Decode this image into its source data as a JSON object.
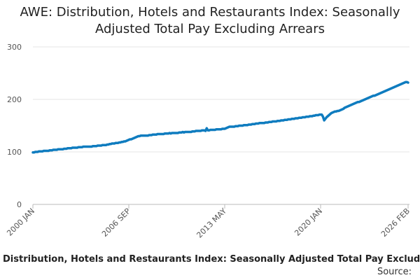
{
  "chart_data": {
    "type": "line",
    "title": "AWE: Distribution, Hotels and Restaurants Index: Seasonally Adjusted Total Pay Excluding Arrears",
    "caption": "Distribution, Hotels and Restaurants Index: Seasonally Adjusted Total Pay Excluding",
    "source": "Source:",
    "color": "#0f7cbf",
    "grid": true,
    "ylim": [
      0,
      300
    ],
    "yticks": [
      0,
      100,
      200,
      300
    ],
    "categories": [
      "2000 JAN",
      null,
      null,
      null,
      null,
      null,
      null,
      null,
      null,
      null,
      null,
      null,
      null,
      null,
      null,
      null,
      null,
      null,
      null,
      null,
      null,
      null,
      null,
      null,
      null,
      null,
      null,
      null,
      null,
      null,
      null,
      null,
      null,
      null,
      null,
      null,
      null,
      null,
      null,
      null,
      null,
      null,
      null,
      null,
      null,
      null,
      null,
      null,
      null,
      null,
      null,
      null,
      null,
      null,
      null,
      null,
      null,
      null,
      null,
      null,
      null,
      null,
      null,
      null,
      null,
      null,
      null,
      null,
      null,
      null,
      null,
      null,
      null,
      null,
      null,
      null,
      null,
      null,
      null,
      null,
      "2006 SEP",
      null,
      null,
      null,
      null,
      null,
      null,
      null,
      null,
      null,
      null,
      null,
      null,
      null,
      null,
      null,
      null,
      null,
      null,
      null,
      null,
      null,
      null,
      null,
      null,
      null,
      null,
      null,
      null,
      null,
      null,
      null,
      null,
      null,
      null,
      null,
      null,
      null,
      null,
      null,
      null,
      null,
      null,
      null,
      null,
      null,
      null,
      null,
      null,
      null,
      null,
      null,
      null,
      null,
      null,
      null,
      null,
      null,
      null,
      null,
      null,
      null,
      null,
      null,
      null,
      null,
      null,
      null,
      null,
      null,
      null,
      null,
      null,
      null,
      null,
      null,
      null,
      null,
      null,
      null,
      "2013 MAY",
      null,
      null,
      null,
      null,
      null,
      null,
      null,
      null,
      null,
      null,
      null,
      null,
      null,
      null,
      null,
      null,
      null,
      null,
      null,
      null,
      null,
      null,
      null,
      null,
      null,
      null,
      null,
      null,
      null,
      null,
      null,
      null,
      null,
      null,
      null,
      null,
      null,
      null,
      null,
      null,
      null,
      null,
      null,
      null,
      null,
      null,
      null,
      null,
      null,
      null,
      null,
      null,
      null,
      null,
      null,
      null,
      null,
      null,
      null,
      null,
      null,
      null,
      null,
      null,
      null,
      null,
      null,
      null,
      null,
      null,
      null,
      null,
      null,
      null,
      null,
      null,
      null,
      null,
      null,
      "2020 JAN",
      null,
      null,
      null,
      null,
      null,
      null,
      null,
      null,
      null,
      null,
      null,
      null,
      null,
      null,
      null,
      null,
      null,
      null,
      null,
      null,
      null,
      null,
      null,
      null,
      null,
      null,
      null,
      null,
      null,
      null,
      null,
      null,
      null,
      null,
      null,
      null,
      null,
      null,
      null,
      null,
      null,
      null,
      null,
      null,
      null,
      null,
      null,
      null,
      null,
      null,
      null,
      null,
      null,
      null,
      null,
      null,
      null,
      null,
      null,
      null,
      null,
      null,
      null,
      null,
      null,
      null,
      null,
      null,
      null,
      null,
      null,
      null,
      "2026 FEB"
    ],
    "values": [
      99,
      99,
      100,
      100,
      100,
      101,
      101,
      101,
      101,
      102,
      102,
      102,
      102,
      102,
      103,
      103,
      103,
      104,
      104,
      104,
      104,
      105,
      105,
      105,
      105,
      105,
      106,
      106,
      106,
      107,
      107,
      107,
      107,
      108,
      108,
      108,
      108,
      108,
      109,
      109,
      109,
      109,
      110,
      110,
      110,
      110,
      110,
      110,
      110,
      110,
      111,
      111,
      111,
      111,
      112,
      112,
      112,
      112,
      113,
      113,
      113,
      113,
      114,
      114,
      115,
      115,
      116,
      116,
      116,
      117,
      117,
      117,
      118,
      118,
      119,
      119,
      120,
      120,
      121,
      122,
      123,
      124,
      124,
      125,
      126,
      127,
      128,
      129,
      130,
      130,
      131,
      131,
      131,
      131,
      131,
      131,
      131,
      132,
      132,
      132,
      133,
      133,
      133,
      133,
      134,
      134,
      134,
      134,
      134,
      134,
      135,
      135,
      135,
      135,
      136,
      135,
      136,
      136,
      136,
      136,
      136,
      136,
      137,
      137,
      137,
      138,
      137,
      138,
      138,
      138,
      138,
      138,
      138,
      139,
      139,
      139,
      140,
      140,
      140,
      140,
      140,
      141,
      141,
      141,
      140,
      145,
      141,
      141,
      142,
      142,
      142,
      142,
      142,
      143,
      143,
      143,
      143,
      143,
      144,
      144,
      144,
      145,
      146,
      147,
      148,
      148,
      148,
      148,
      148,
      149,
      149,
      149,
      150,
      150,
      150,
      150,
      151,
      151,
      151,
      151,
      152,
      152,
      152,
      153,
      153,
      153,
      154,
      154,
      154,
      155,
      155,
      155,
      155,
      155,
      156,
      156,
      156,
      157,
      157,
      157,
      158,
      158,
      158,
      158,
      159,
      159,
      159,
      160,
      160,
      160,
      161,
      161,
      161,
      162,
      162,
      162,
      163,
      163,
      163,
      164,
      164,
      164,
      165,
      165,
      165,
      166,
      166,
      166,
      167,
      167,
      167,
      168,
      168,
      168,
      169,
      169,
      170,
      170,
      170,
      171,
      171,
      171,
      167,
      160,
      163,
      166,
      168,
      170,
      172,
      174,
      175,
      176,
      177,
      177,
      178,
      178,
      179,
      180,
      181,
      182,
      184,
      185,
      186,
      187,
      188,
      189,
      190,
      191,
      192,
      193,
      194,
      195,
      195,
      196,
      197,
      198,
      199,
      200,
      201,
      202,
      203,
      204,
      205,
      206,
      207,
      207,
      208,
      209,
      210,
      211,
      212,
      213,
      214,
      215,
      216,
      217,
      218,
      219,
      220,
      221,
      222,
      223,
      224,
      225,
      226,
      227,
      228,
      229,
      230,
      231,
      232,
      233,
      233,
      232
    ]
  }
}
